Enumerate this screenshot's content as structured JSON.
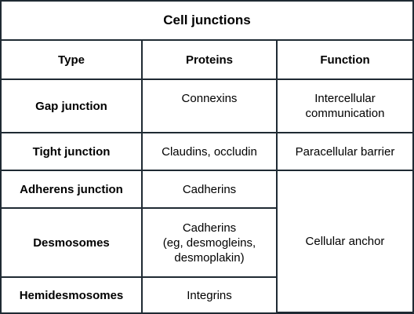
{
  "title": "Cell junctions",
  "headers": {
    "type": "Type",
    "proteins": "Proteins",
    "function": "Function"
  },
  "rows": [
    {
      "type": "Gap junction",
      "proteins": "Connexins",
      "function_line1": "Intercellular",
      "function_line2": "communication"
    },
    {
      "type": "Tight junction",
      "proteins": "Claudins, occludin",
      "function": "Paracellular barrier"
    },
    {
      "type": "Adherens junction",
      "proteins": "Cadherins"
    },
    {
      "type": "Desmosomes",
      "proteins_line1": "Cadherins",
      "proteins_line2": "(eg, desmogleins,",
      "proteins_line3": "desmoplakin)"
    },
    {
      "type": "Hemidesmosomes",
      "proteins": "Integrins"
    }
  ],
  "merged_function": "Cellular anchor",
  "colors": {
    "border": "#1f2a33",
    "background": "#ffffff",
    "text": "#000000"
  }
}
